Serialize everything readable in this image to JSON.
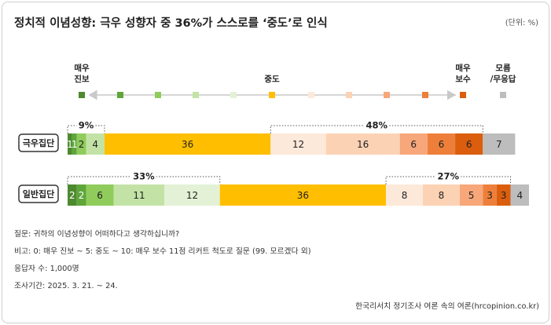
{
  "title": "정치적 이념성향: 극우 성향자 중 36%가 스스로를 ‘중도’로 인식",
  "unit": "(단위: %)",
  "scale": {
    "left_label_line1": "매우",
    "left_label_line2": "진보",
    "center_label": "중도",
    "right_label_line1": "매우",
    "right_label_line2": "보수",
    "dk_label_line1": "모름",
    "dk_label_line2": "/무응답"
  },
  "colors": [
    "#4d8a2f",
    "#5fa63a",
    "#8fcc5c",
    "#c3e3a6",
    "#e3f2d6",
    "#ffbf00",
    "#fde9da",
    "#fcd2b5",
    "#f7a77a",
    "#ee7f3a",
    "#db5e0e",
    "#bdbdbd"
  ],
  "chart_data": {
    "type": "bar",
    "stacked": true,
    "orientation": "horizontal",
    "categories": [
      "0",
      "1",
      "2",
      "3",
      "4",
      "5",
      "6",
      "7",
      "8",
      "9",
      "10",
      "모름/무응답"
    ],
    "series": [
      {
        "name": "극우집단",
        "values": [
          1,
          1,
          2,
          4,
          0,
          36,
          12,
          16,
          6,
          6,
          6,
          7
        ],
        "labels": [
          "1",
          "1",
          "2",
          "4",
          "",
          "36",
          "12",
          "16",
          "6",
          "6",
          "6",
          "7"
        ]
      },
      {
        "name": "일반집단",
        "values": [
          2,
          2,
          6,
          11,
          12,
          36,
          8,
          8,
          5,
          3,
          3,
          4
        ],
        "labels": [
          "2",
          "2",
          "6",
          "11",
          "12",
          "36",
          "8",
          "8",
          "5",
          "3",
          "3",
          "4"
        ]
      }
    ],
    "brackets": [
      {
        "row": 0,
        "from": 0,
        "to": 4,
        "label": "9%"
      },
      {
        "row": 0,
        "from": 6,
        "to": 10,
        "label": "48%"
      },
      {
        "row": 1,
        "from": 0,
        "to": 4,
        "label": "33%"
      },
      {
        "row": 1,
        "from": 6,
        "to": 10,
        "label": "27%"
      }
    ]
  },
  "notes": [
    "질문: 귀하의 이념성향이 어떠하다고 생각하십니까?",
    "비고: 0: 매우 진보 ~ 5: 중도 ~ 10: 매우 보수 11점 리커트 척도로 질문 (99. 모르겠다 외)",
    "응답자 수: 1,000명",
    "조사기간: 2025. 3. 21. ~ 24."
  ],
  "source": "한국리서치 정기조사 여론 속의 여론(hrcopinion.co.kr)"
}
